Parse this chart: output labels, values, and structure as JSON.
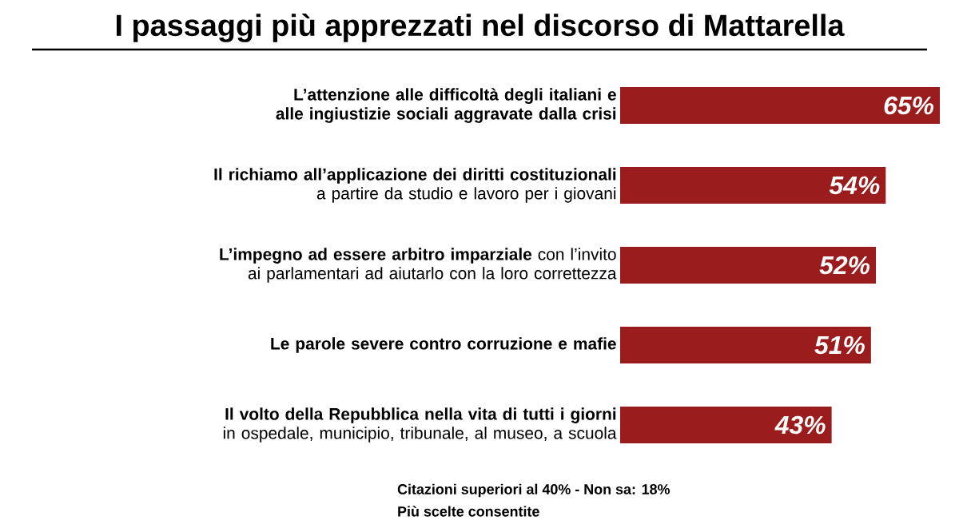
{
  "chart_data": {
    "type": "bar",
    "orientation": "horizontal",
    "title": "I passaggi più apprezzati nel discorso di Mattarella",
    "categories": [
      "**L’attenzione alle difficoltà degli italiani e alle ingiustizie sociali aggravate dalla crisi**",
      "**Il richiamo all’applicazione dei diritti costituzionali** a partire da studio e lavoro per i giovani",
      "**L’impegno ad essere arbitro imparziale** con l’invito ai parlamentari ad aiutarlo con la loro correttezza",
      "**Le parole severe contro corruzione e mafie**",
      "**Il volto della Repubblica nella vita di tutti i giorni** in ospedale, municipio, tribunale, al museo, a scuola"
    ],
    "values": [
      65,
      54,
      52,
      51,
      43
    ],
    "color": "#9b1c1c",
    "value_labels": [
      "65%",
      "54%",
      "52%",
      "51%",
      "43%"
    ],
    "annotations": [
      "Citazioni superiori al 40% - Non sa: 18%",
      "Più scelte consentite"
    ]
  }
}
